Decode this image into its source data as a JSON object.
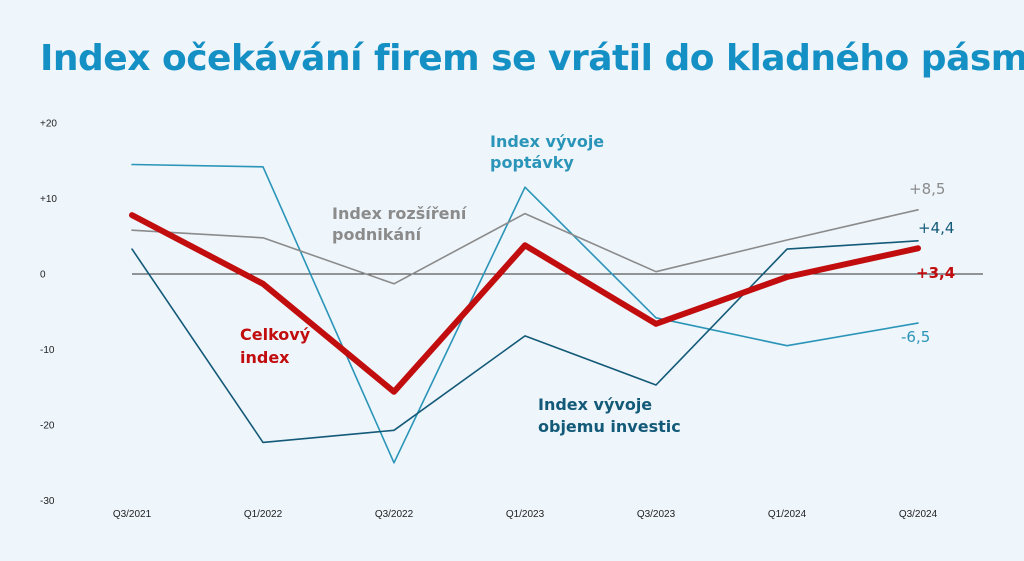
{
  "title": "Index očekávání firem se vrátil do kladného pásma",
  "chart_data": {
    "type": "line",
    "categories": [
      "Q3/2021",
      "Q1/2022",
      "Q3/2022",
      "Q1/2023",
      "Q3/2023",
      "Q1/2024",
      "Q3/2024"
    ],
    "x": [
      0,
      1,
      2,
      3,
      4,
      5,
      6,
      7,
      8,
      9,
      10,
      11,
      12
    ],
    "ylim": [
      -30,
      20
    ],
    "yticks": [
      "+20",
      "+10",
      "0",
      "-10",
      "-20",
      "-30"
    ],
    "ytick_values": [
      20,
      10,
      0,
      -10,
      -20,
      -30
    ],
    "grid": false,
    "zero_line": true,
    "series": [
      {
        "name": "Index vývoje poptávky",
        "label_lines": [
          "Index vývoje",
          "poptávky"
        ],
        "color": "#2a95b8",
        "width": 1.6,
        "values": [
          14.5,
          null,
          14.2,
          null,
          -25.0,
          null,
          11.5,
          null,
          -5.8,
          null,
          -9.5,
          null,
          -6.5
        ],
        "end_label": "-6,5"
      },
      {
        "name": "Index rozšíření podnikání",
        "label_lines": [
          "Index rozšíření",
          "podnikání"
        ],
        "color": "#8b8b8b",
        "width": 1.6,
        "values": [
          5.8,
          null,
          4.8,
          null,
          -1.3,
          null,
          8.0,
          null,
          0.3,
          null,
          4.5,
          null,
          8.5
        ],
        "end_label": "+8,5"
      },
      {
        "name": "Index vývoje objemu investic",
        "label_lines": [
          "Index vývoje",
          "objemu investic"
        ],
        "color": "#135a78",
        "width": 1.6,
        "values": [
          3.3,
          null,
          -22.3,
          null,
          -20.7,
          null,
          -8.2,
          null,
          -14.7,
          null,
          3.3,
          null,
          4.4
        ],
        "end_label": "+4,4"
      },
      {
        "name": "Celkový index",
        "label_lines": [
          "Celkový",
          "index"
        ],
        "color": "#c10d0d",
        "width": 6,
        "values": [
          7.8,
          null,
          -1.3,
          null,
          -15.6,
          null,
          3.8,
          null,
          -6.6,
          null,
          -0.4,
          null,
          3.4
        ],
        "end_label": "+3,4"
      }
    ]
  }
}
